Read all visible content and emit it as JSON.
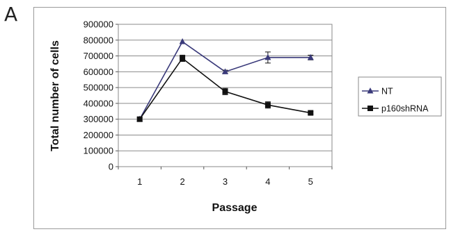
{
  "figure": {
    "panel_letter": "A"
  },
  "chart_data": {
    "type": "line",
    "title": "",
    "xlabel": "Passage",
    "ylabel": "Total number of cells",
    "categories": [
      "1",
      "2",
      "3",
      "4",
      "5"
    ],
    "ylim": [
      0,
      900000
    ],
    "yticks": [
      "0",
      "100000",
      "200000",
      "300000",
      "400000",
      "500000",
      "600000",
      "700000",
      "800000",
      "900000"
    ],
    "grid": true,
    "legend_position": "right",
    "series": [
      {
        "name": "NT",
        "marker": "triangle",
        "color": "#3a3a7a",
        "values": [
          300000,
          790000,
          600000,
          690000,
          690000
        ],
        "errors": [
          0,
          0,
          10000,
          35000,
          15000
        ]
      },
      {
        "name": "p160shRNA",
        "marker": "square",
        "color": "#111111",
        "values": [
          300000,
          685000,
          475000,
          390000,
          340000
        ],
        "errors": [
          10000,
          20000,
          20000,
          20000,
          8000
        ]
      }
    ]
  }
}
